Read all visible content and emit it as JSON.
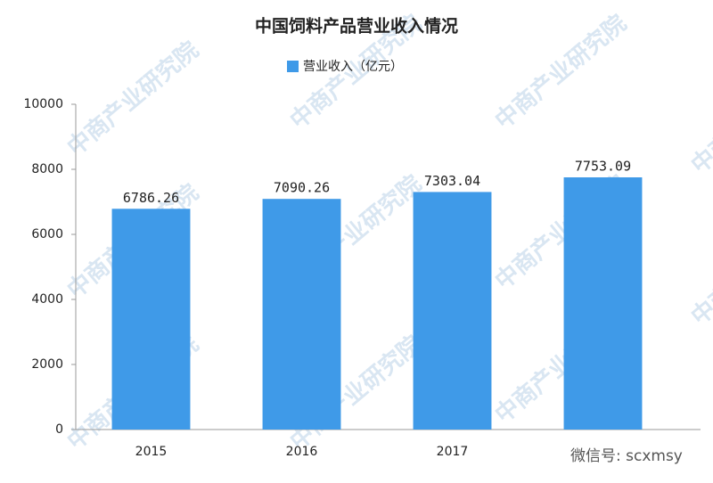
{
  "chart_data": {
    "type": "bar",
    "title": "中国饲料产品营业收入情况",
    "categories": [
      "2015",
      "2016",
      "2017",
      null
    ],
    "series": [
      {
        "name": "营业收入（亿元）",
        "color": "#3f9ae8",
        "values": [
          6786.26,
          7090.26,
          7303.04,
          7753.09
        ]
      }
    ],
    "ylim": [
      0,
      10000
    ],
    "yticks": [
      0,
      2000,
      4000,
      6000,
      8000,
      10000
    ],
    "grid": false,
    "watermark": "中商产业研究院",
    "wechat_id": "微信号: scxmsy"
  }
}
